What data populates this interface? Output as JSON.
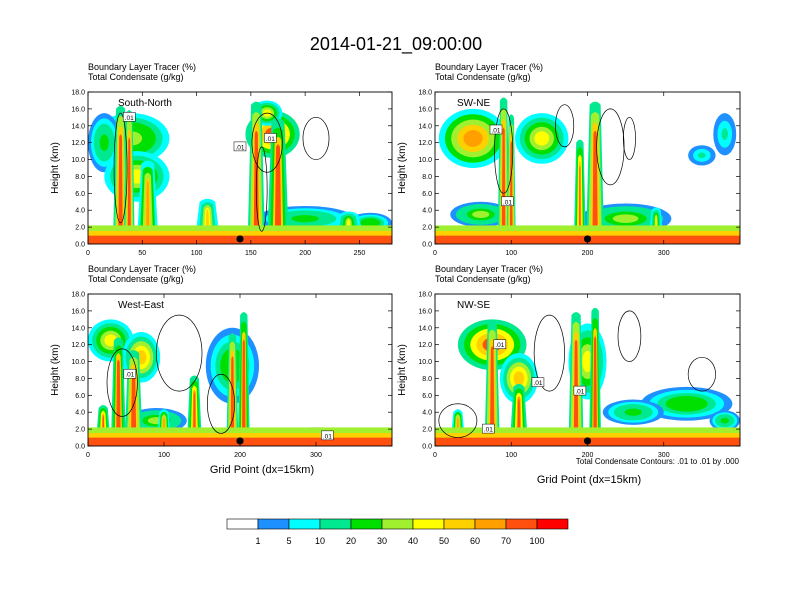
{
  "title": "2014-01-21_09:00:00",
  "panel_headers": {
    "line1": "Boundary Layer Tracer   (%)",
    "line2": "Total Condensate   (g/kg)"
  },
  "ylabel": "Height (km)",
  "xlabel": "Grid Point (dx=15km)",
  "contour_note": "Total Condensate Contours: .01 to .01 by .000",
  "contour_label": ".01",
  "colorbar": {
    "colors": [
      "#ffffff",
      "#1e90ff",
      "#00ffff",
      "#00e890",
      "#00e000",
      "#a0f030",
      "#ffff00",
      "#ffd000",
      "#ffa000",
      "#ff5010",
      "#ff0000"
    ],
    "labels": [
      "1",
      "5",
      "10",
      "20",
      "30",
      "40",
      "50",
      "60",
      "70",
      "100"
    ]
  },
  "chart_data": [
    {
      "type": "heatmap",
      "name": "South-North",
      "xlim": [
        0,
        280
      ],
      "ylim": [
        0,
        18
      ],
      "xticks": [
        0,
        50,
        100,
        150,
        200,
        250
      ],
      "yticks": [
        0,
        2,
        4,
        6,
        8,
        10,
        12,
        14,
        16,
        18
      ],
      "marker_x": 140,
      "plumes": [
        {
          "x": 30,
          "w": 7,
          "top": 16.0,
          "v": 95
        },
        {
          "x": 38,
          "w": 5,
          "top": 15.5,
          "v": 90
        },
        {
          "x": 55,
          "w": 10,
          "top": 9.5,
          "v": 60
        },
        {
          "x": 155,
          "w": 8,
          "top": 16.5,
          "v": 90
        },
        {
          "x": 175,
          "w": 10,
          "top": 14.5,
          "v": 85
        },
        {
          "x": 110,
          "w": 12,
          "top": 5.0,
          "v": 50
        },
        {
          "x": 240,
          "w": 15,
          "top": 3.5,
          "v": 40
        }
      ],
      "blobs": [
        {
          "x": 40,
          "y": 12.5,
          "rx": 35,
          "ry": 3.0,
          "v": 35
        },
        {
          "x": 15,
          "y": 12.0,
          "rx": 15,
          "ry": 3.5,
          "v": 20
        },
        {
          "x": 45,
          "y": 8.0,
          "rx": 30,
          "ry": 3.0,
          "v": 45
        },
        {
          "x": 170,
          "y": 13.0,
          "rx": 25,
          "ry": 2.8,
          "v": 70
        },
        {
          "x": 165,
          "y": 15.5,
          "rx": 14,
          "ry": 1.5,
          "v": 40
        },
        {
          "x": 200,
          "y": 3.0,
          "rx": 45,
          "ry": 1.5,
          "v": 20
        },
        {
          "x": 260,
          "y": 2.5,
          "rx": 20,
          "ry": 1.2,
          "v": 25
        }
      ],
      "contours": [
        {
          "x": 165,
          "y": 12.0,
          "rx": 14,
          "ry": 3.5
        },
        {
          "x": 210,
          "y": 12.5,
          "rx": 12,
          "ry": 2.5
        },
        {
          "x": 30,
          "y": 9.0,
          "rx": 6,
          "ry": 6.5
        },
        {
          "x": 160,
          "y": 6.5,
          "rx": 5,
          "ry": 5.0
        }
      ],
      "labels": [
        {
          "x": 38,
          "y": 15.0
        },
        {
          "x": 140,
          "y": 11.5
        },
        {
          "x": 168,
          "y": 12.5
        }
      ]
    },
    {
      "type": "heatmap",
      "name": "SW-NE",
      "xlim": [
        0,
        400
      ],
      "ylim": [
        0,
        18
      ],
      "xticks": [
        0,
        100,
        200,
        300
      ],
      "yticks": [
        0,
        2,
        4,
        6,
        8,
        10,
        12,
        14,
        16,
        18
      ],
      "marker_x": 200,
      "plumes": [
        {
          "x": 90,
          "w": 8,
          "top": 17.0,
          "v": 95
        },
        {
          "x": 100,
          "w": 6,
          "top": 15.0,
          "v": 90
        },
        {
          "x": 210,
          "w": 12,
          "top": 16.5,
          "v": 90
        },
        {
          "x": 190,
          "w": 8,
          "top": 12.0,
          "v": 70
        },
        {
          "x": 290,
          "w": 10,
          "top": 4.0,
          "v": 45
        }
      ],
      "blobs": [
        {
          "x": 50,
          "y": 12.5,
          "rx": 45,
          "ry": 3.5,
          "v": 65
        },
        {
          "x": 140,
          "y": 12.5,
          "rx": 35,
          "ry": 3.0,
          "v": 40
        },
        {
          "x": 380,
          "y": 13.0,
          "rx": 15,
          "ry": 2.5,
          "v": 10
        },
        {
          "x": 350,
          "y": 10.5,
          "rx": 18,
          "ry": 1.2,
          "v": 10
        },
        {
          "x": 250,
          "y": 3.0,
          "rx": 60,
          "ry": 1.8,
          "v": 30
        },
        {
          "x": 60,
          "y": 3.5,
          "rx": 40,
          "ry": 1.5,
          "v": 30
        }
      ],
      "contours": [
        {
          "x": 90,
          "y": 11.0,
          "rx": 12,
          "ry": 5.0
        },
        {
          "x": 230,
          "y": 11.5,
          "rx": 18,
          "ry": 4.5
        },
        {
          "x": 170,
          "y": 14.0,
          "rx": 12,
          "ry": 2.5
        },
        {
          "x": 255,
          "y": 12.5,
          "rx": 8,
          "ry": 2.5
        }
      ],
      "labels": [
        {
          "x": 80,
          "y": 13.5
        },
        {
          "x": 95,
          "y": 5.0
        }
      ]
    },
    {
      "type": "heatmap",
      "name": "West-East",
      "xlim": [
        0,
        400
      ],
      "ylim": [
        0,
        18
      ],
      "xticks": [
        0,
        100,
        200,
        300
      ],
      "yticks": [
        0,
        2,
        4,
        6,
        8,
        10,
        12,
        14,
        16,
        18
      ],
      "marker_x": 200,
      "plumes": [
        {
          "x": 40,
          "w": 10,
          "top": 12.5,
          "v": 85
        },
        {
          "x": 60,
          "w": 12,
          "top": 11.0,
          "v": 90
        },
        {
          "x": 140,
          "w": 10,
          "top": 8.0,
          "v": 80
        },
        {
          "x": 190,
          "w": 8,
          "top": 13.0,
          "v": 90
        },
        {
          "x": 205,
          "w": 8,
          "top": 15.5,
          "v": 85
        },
        {
          "x": 20,
          "w": 10,
          "top": 4.5,
          "v": 70
        },
        {
          "x": 100,
          "w": 10,
          "top": 4.0,
          "v": 60
        }
      ],
      "blobs": [
        {
          "x": 30,
          "y": 12.5,
          "rx": 30,
          "ry": 2.5,
          "v": 40
        },
        {
          "x": 70,
          "y": 10.5,
          "rx": 25,
          "ry": 3.0,
          "v": 50
        },
        {
          "x": 190,
          "y": 9.5,
          "rx": 35,
          "ry": 4.5,
          "v": 25
        },
        {
          "x": 90,
          "y": 3.0,
          "rx": 40,
          "ry": 1.5,
          "v": 30
        },
        {
          "x": 300,
          "y": 1.5,
          "rx": 60,
          "ry": 0.7,
          "v": 25
        }
      ],
      "contours": [
        {
          "x": 120,
          "y": 11.0,
          "rx": 30,
          "ry": 4.5
        },
        {
          "x": 45,
          "y": 7.5,
          "rx": 20,
          "ry": 4.0
        },
        {
          "x": 175,
          "y": 5.0,
          "rx": 18,
          "ry": 3.5
        }
      ],
      "labels": [
        {
          "x": 55,
          "y": 8.5
        },
        {
          "x": 315,
          "y": 1.2
        }
      ]
    },
    {
      "type": "heatmap",
      "name": "NW-SE",
      "xlim": [
        0,
        400
      ],
      "ylim": [
        0,
        18
      ],
      "xticks": [
        0,
        100,
        200,
        300
      ],
      "yticks": [
        0,
        2,
        4,
        6,
        8,
        10,
        12,
        14,
        16,
        18
      ],
      "marker_x": 200,
      "plumes": [
        {
          "x": 75,
          "w": 10,
          "top": 14.5,
          "v": 90
        },
        {
          "x": 110,
          "w": 12,
          "top": 7.0,
          "v": 75
        },
        {
          "x": 185,
          "w": 10,
          "top": 15.5,
          "v": 90
        },
        {
          "x": 210,
          "w": 8,
          "top": 16.0,
          "v": 85
        },
        {
          "x": 30,
          "w": 10,
          "top": 4.0,
          "v": 60
        }
      ],
      "blobs": [
        {
          "x": 75,
          "y": 12.0,
          "rx": 45,
          "ry": 3.0,
          "v": 70
        },
        {
          "x": 110,
          "y": 8.0,
          "rx": 25,
          "ry": 3.0,
          "v": 50
        },
        {
          "x": 200,
          "y": 10.0,
          "rx": 25,
          "ry": 4.5,
          "v": 40
        },
        {
          "x": 330,
          "y": 5.0,
          "rx": 60,
          "ry": 2.0,
          "v": 25
        },
        {
          "x": 260,
          "y": 4.0,
          "rx": 40,
          "ry": 1.5,
          "v": 20
        },
        {
          "x": 380,
          "y": 3.0,
          "rx": 20,
          "ry": 1.2,
          "v": 20
        }
      ],
      "contours": [
        {
          "x": 150,
          "y": 11.0,
          "rx": 20,
          "ry": 4.5
        },
        {
          "x": 255,
          "y": 13.0,
          "rx": 15,
          "ry": 3.0
        },
        {
          "x": 350,
          "y": 8.5,
          "rx": 18,
          "ry": 2.0
        },
        {
          "x": 30,
          "y": 3.0,
          "rx": 25,
          "ry": 2.0
        }
      ],
      "labels": [
        {
          "x": 85,
          "y": 12.0
        },
        {
          "x": 135,
          "y": 7.5
        },
        {
          "x": 190,
          "y": 6.5
        },
        {
          "x": 70,
          "y": 2.0
        }
      ]
    }
  ]
}
